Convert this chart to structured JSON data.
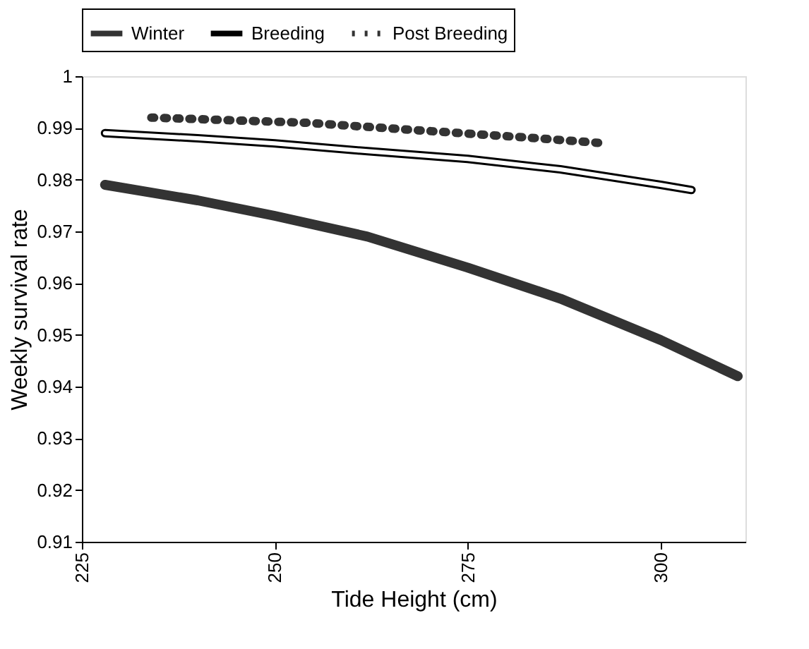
{
  "chart_data": {
    "type": "line",
    "xlabel": "Tide Height (cm)",
    "ylabel": "Weekly survival rate",
    "series": [
      {
        "name": "Winter",
        "color": "#333333",
        "line_style": "solid",
        "x": [
          228,
          240,
          250,
          262,
          275,
          287,
          300,
          310
        ],
        "values": [
          0.979,
          0.976,
          0.973,
          0.969,
          0.963,
          0.957,
          0.949,
          0.942
        ]
      },
      {
        "name": "Breeding",
        "color": "#000000",
        "line_style": "solid",
        "x": [
          228,
          240,
          250,
          262,
          275,
          287,
          300,
          304
        ],
        "values": [
          0.989,
          0.988,
          0.987,
          0.9855,
          0.984,
          0.982,
          0.979,
          0.978
        ]
      },
      {
        "name": "Post Breeding",
        "color": "#333333",
        "line_style": "dotted",
        "x": [
          234,
          244,
          254,
          264,
          274,
          284,
          293
        ],
        "values": [
          0.992,
          0.9915,
          0.991,
          0.99,
          0.989,
          0.988,
          0.987
        ]
      }
    ],
    "xlim": [
      225,
      311
    ],
    "xticks": [
      225,
      250,
      275,
      300
    ],
    "ylim": [
      0.91,
      1
    ],
    "yticks": [
      0.91,
      0.92,
      0.93,
      0.94,
      0.95,
      0.96,
      0.97,
      0.98,
      0.99,
      1
    ],
    "grid": false,
    "legend": "top",
    "marker": "none"
  }
}
